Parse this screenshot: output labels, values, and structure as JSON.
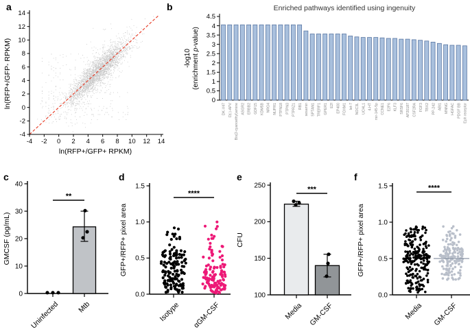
{
  "panels": {
    "a": "a",
    "b": "b",
    "c": "c",
    "d": "d",
    "e": "e",
    "f": "f"
  },
  "chart_data": [
    {
      "panel": "a",
      "type": "scatter",
      "xlabel": "ln(RFP+/GFP+ RPKM)",
      "ylabel": "ln(RFP+/GFP- RPKM)",
      "xlim": [
        -4,
        14
      ],
      "ylim": [
        -4,
        14
      ],
      "xticks": [
        -4,
        -2,
        0,
        2,
        4,
        6,
        8,
        10,
        12,
        14
      ],
      "yticks": [
        -4,
        -2,
        0,
        2,
        4,
        6,
        8,
        10,
        12,
        14
      ],
      "point_color": "#c9c9c9",
      "identity_color": "#e8432e",
      "identity_style": "dashed",
      "cloud": {
        "n": 2600,
        "x_mean": 5.3,
        "x_sd": 2.1,
        "noise_sd": 1.0,
        "n_outlier": 250,
        "outlier_sd": 2.6,
        "n_stripe": 230,
        "stripe_values": [
          -2.3,
          -1.8,
          -1.4,
          -1.05,
          -0.75,
          -0.45,
          -0.15,
          0.15,
          0.55,
          1.0,
          1.6,
          2.2
        ],
        "seed": 7
      }
    },
    {
      "panel": "b",
      "type": "bar",
      "title": "Enriched pathways identified using ingenuity",
      "ylabel_line1": "-log10",
      "ylabel_line2": "(enrichment p-value)",
      "ylim": [
        0,
        4.5
      ],
      "yticks": [
        0,
        0.5,
        1,
        1.5,
        2,
        2.5,
        3,
        3.5,
        4,
        4.5
      ],
      "bar_color": "#a9c0dd",
      "bar_stroke": "#5a77a3",
      "label_color": "#8a8a8a",
      "categories": [
        "DK-V47",
        "D(-)-APV",
        "Bis(2-cyanoethyl)amine",
        "ASGR2",
        "ERBB2",
        "GDF15",
        "KDM5B",
        "NRG4",
        "NUPR1",
        "PTPN18",
        "PTPN3",
        "PTPRZ1",
        "RB1",
        "sesamin",
        "SPTAN1",
        "TRERF1",
        "GPER1",
        "E2f",
        "EP400",
        "FOXM1",
        "let-7",
        "NOC3L",
        "UCHL1",
        "4-HT",
        "mir-145-5p",
        "CCNE1",
        "E2F6",
        "KLF3",
        "SRSF6",
        "AP20187",
        "CSF2RA",
        "FGF3",
        "TBX2",
        "PP-242",
        "ABI1",
        "MNNG",
        "HGFAC",
        "PDGF BB",
        "Eph receptor"
      ],
      "values": [
        4.05,
        4.05,
        4.05,
        4.05,
        4.05,
        4.05,
        4.05,
        4.05,
        4.05,
        4.05,
        4.05,
        4.05,
        4.05,
        3.72,
        3.56,
        3.56,
        3.56,
        3.56,
        3.56,
        3.56,
        3.45,
        3.4,
        3.37,
        3.37,
        3.37,
        3.35,
        3.32,
        3.32,
        3.28,
        3.28,
        3.25,
        3.22,
        3.18,
        3.12,
        3.05,
        2.98,
        2.95,
        2.95,
        2.92
      ]
    },
    {
      "panel": "c",
      "type": "bar-scatter",
      "ylabel": "GMCSF (pg/mL)",
      "ylim": [
        0,
        40
      ],
      "yticks": [
        0,
        10,
        20,
        30,
        40
      ],
      "ytick_labels": [
        "0",
        "10",
        "20",
        "30",
        "40"
      ],
      "sig": "**",
      "groups": [
        {
          "label": "Uninfected",
          "bar": null,
          "points": [
            [
              0.3,
              -8
            ],
            [
              0.3,
              0
            ],
            [
              0.3,
              8
            ]
          ]
        },
        {
          "label": "Mtb",
          "bar": 24.3,
          "bar_color": "#c0c3c7",
          "error": [
            19,
            30
          ],
          "points": [
            [
              30.2,
              1
            ],
            [
              22.5,
              4
            ],
            [
              20.3,
              -2
            ]
          ]
        }
      ]
    },
    {
      "panel": "d",
      "type": "dot-plot",
      "ylabel": "GFP+/RFP+ pixel area",
      "ylim": [
        0,
        1.5
      ],
      "yticks": [
        0,
        0.5,
        1,
        1.5
      ],
      "ytick_labels": [
        "0.0",
        "0.5",
        "1.0",
        "1.5"
      ],
      "sig": "****",
      "dot_r": 2.1,
      "groups": [
        {
          "label": "Isotype",
          "color": "#000000",
          "n": 145,
          "strata": [
            [
              14,
              0.62,
              0.97,
              26
            ],
            [
              26,
              0.5,
              0.62,
              34
            ],
            [
              40,
              0.3,
              0.5,
              36
            ],
            [
              50,
              0.1,
              0.3,
              32
            ],
            [
              15,
              0.02,
              0.1,
              30
            ]
          ]
        },
        {
          "label": "αGM-CSF",
          "color": "#ed1977",
          "n": 123,
          "strata": [
            [
              14,
              0.62,
              1.0,
              26
            ],
            [
              26,
              0.32,
              0.62,
              32
            ],
            [
              75,
              0.05,
              0.32,
              34
            ],
            [
              8,
              0.01,
              0.05,
              22
            ]
          ]
        }
      ]
    },
    {
      "panel": "e",
      "type": "bar-scatter",
      "ylabel": "CFU",
      "ylim": [
        100,
        250
      ],
      "yticks": [
        100,
        150,
        200,
        250
      ],
      "ytick_labels": [
        "100",
        "150",
        "200",
        "250"
      ],
      "sig": "***",
      "groups": [
        {
          "label": "Media",
          "bar": 224,
          "bar_color": "#e9ebed",
          "error": [
            221,
            228
          ],
          "points": [
            [
              228,
              -4
            ],
            [
              225.5,
              4
            ],
            [
              223,
              -1
            ]
          ]
        },
        {
          "label": "GM-CSF",
          "bar": 140,
          "bar_color": "#919598",
          "error": [
            124.5,
            155.5
          ],
          "points": [
            [
              155.5,
              2
            ],
            [
              143,
              1
            ],
            [
              125.5,
              -1
            ]
          ]
        }
      ]
    },
    {
      "panel": "f",
      "type": "dot-plot",
      "ylabel": "GFP+/RFP+ pixel area",
      "ylim": [
        0,
        1.5
      ],
      "yticks": [
        0,
        0.5,
        1,
        1.5
      ],
      "ytick_labels": [
        "0.0",
        "0.5",
        "1.0",
        "1.5"
      ],
      "sig": "****",
      "dot_r": 1.8,
      "groups": [
        {
          "label": "Media",
          "color": "#000000",
          "n": 235,
          "strata": [
            [
              70,
              0.6,
              0.95,
              36
            ],
            [
              80,
              0.45,
              0.6,
              38
            ],
            [
              60,
              0.15,
              0.45,
              34
            ],
            [
              25,
              0.03,
              0.15,
              26
            ]
          ]
        },
        {
          "label": "GM-CSF",
          "color": "#b9bfca",
          "n": 170,
          "median": 0.5,
          "strata": [
            [
              30,
              0.65,
              0.95,
              26
            ],
            [
              90,
              0.45,
              0.65,
              34
            ],
            [
              50,
              0.2,
              0.45,
              28
            ]
          ]
        }
      ]
    }
  ]
}
